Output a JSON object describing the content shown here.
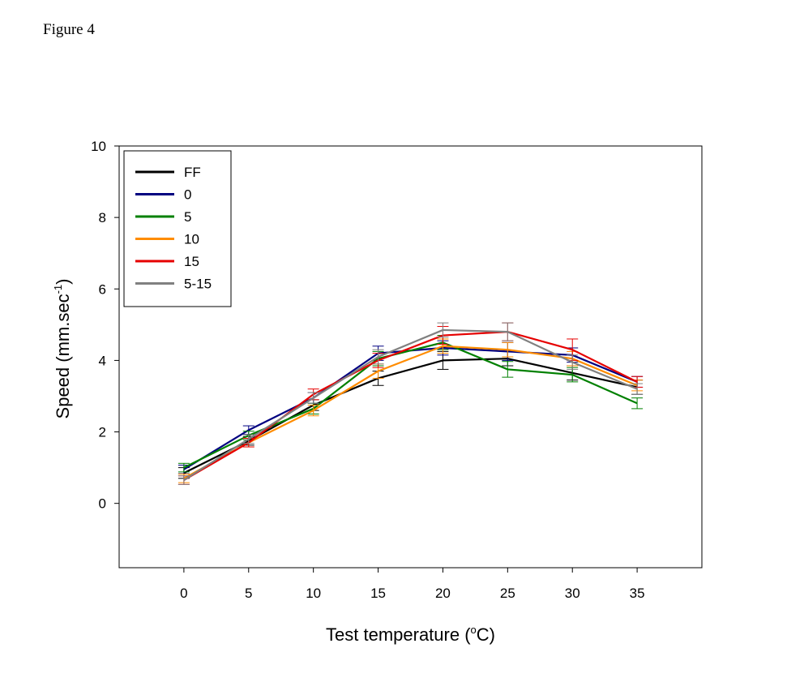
{
  "page": {
    "figure_label": "Figure 4"
  },
  "chart_data": {
    "type": "line",
    "x": [
      0,
      5,
      10,
      15,
      20,
      25,
      30,
      35
    ],
    "xticks": [
      "0",
      "5",
      "10",
      "15",
      "20",
      "25",
      "30",
      "35"
    ],
    "yticks": [
      "0",
      "2",
      "4",
      "6",
      "8",
      "10"
    ],
    "xlim": [
      -5,
      40
    ],
    "ylim": [
      -1.8,
      10
    ],
    "xlabel": "Test temperature (",
    "xlabel_sup": "o",
    "xlabel_end": "C)",
    "ylabel": "Speed (mm.sec",
    "ylabel_sup": "-1",
    "ylabel_end": ")",
    "legend_position": "top-left",
    "grid": false,
    "series": [
      {
        "name": "FF",
        "color": "#000000",
        "values": [
          0.85,
          1.75,
          2.75,
          3.5,
          4.0,
          4.05,
          3.65,
          3.25
        ],
        "errors": [
          0.15,
          0.12,
          0.15,
          0.2,
          0.25,
          0.2,
          0.2,
          0.2
        ]
      },
      {
        "name": "0",
        "color": "#000080",
        "values": [
          0.95,
          2.05,
          2.95,
          4.2,
          4.35,
          4.25,
          4.15,
          3.4
        ],
        "errors": [
          0.12,
          0.12,
          0.15,
          0.2,
          0.2,
          0.25,
          0.2,
          0.15
        ]
      },
      {
        "name": "5",
        "color": "#008000",
        "values": [
          1.0,
          1.9,
          2.65,
          4.05,
          4.5,
          3.75,
          3.6,
          2.8
        ],
        "errors": [
          0.12,
          0.12,
          0.15,
          0.2,
          0.2,
          0.22,
          0.2,
          0.15
        ]
      },
      {
        "name": "10",
        "color": "#FF8C00",
        "values": [
          0.7,
          1.7,
          2.6,
          3.7,
          4.4,
          4.3,
          4.05,
          3.3
        ],
        "errors": [
          0.12,
          0.12,
          0.15,
          0.2,
          0.2,
          0.2,
          0.2,
          0.15
        ]
      },
      {
        "name": "15",
        "color": "#E60000",
        "values": [
          0.65,
          1.7,
          3.05,
          4.0,
          4.7,
          4.8,
          4.3,
          3.4
        ],
        "errors": [
          0.12,
          0.12,
          0.15,
          0.2,
          0.25,
          0.25,
          0.3,
          0.15
        ]
      },
      {
        "name": "5-15",
        "color": "#808080",
        "values": [
          0.65,
          1.8,
          2.95,
          4.1,
          4.85,
          4.8,
          3.95,
          3.2
        ],
        "errors": [
          0.12,
          0.12,
          0.15,
          0.2,
          0.2,
          0.25,
          0.2,
          0.15
        ]
      }
    ]
  }
}
